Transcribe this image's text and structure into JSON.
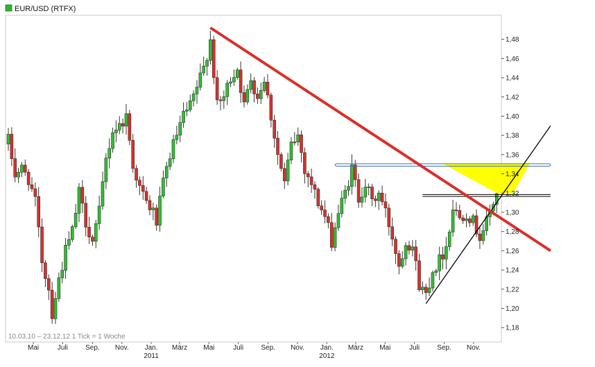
{
  "chart_data": {
    "type": "candlestick",
    "title": "",
    "legend": {
      "label": "EUR/USD (RTFX)",
      "color": "#2db42d",
      "placement": "top-left"
    },
    "footer": "10.03.10 – 23.12.12   1 Tick = 1 Woche",
    "ylim": [
      1.165,
      1.505
    ],
    "y_ticks": [
      "1,18",
      "1,20",
      "1,22",
      "1,24",
      "1,26",
      "1,28",
      "1,30",
      "1,32",
      "1,34",
      "1,36",
      "1,38",
      "1,40",
      "1,42",
      "1,44",
      "1,46",
      "1,48"
    ],
    "y_tick_values": [
      1.18,
      1.2,
      1.22,
      1.24,
      1.26,
      1.28,
      1.3,
      1.32,
      1.34,
      1.36,
      1.38,
      1.4,
      1.42,
      1.44,
      1.46,
      1.48
    ],
    "x_range": [
      "2010-03-10",
      "2012-12-23"
    ],
    "x_ticks": [
      {
        "date": "2010-05-01",
        "label": "Mai",
        "year": ""
      },
      {
        "date": "2010-07-01",
        "label": "Juli",
        "year": ""
      },
      {
        "date": "2010-09-01",
        "label": "Sep.",
        "year": ""
      },
      {
        "date": "2010-11-01",
        "label": "Nov.",
        "year": ""
      },
      {
        "date": "2011-01-01",
        "label": "Jan.",
        "year": "2011"
      },
      {
        "date": "2011-03-01",
        "label": "März",
        "year": ""
      },
      {
        "date": "2011-05-01",
        "label": "Mai",
        "year": ""
      },
      {
        "date": "2011-07-01",
        "label": "Juli",
        "year": ""
      },
      {
        "date": "2011-09-01",
        "label": "Sep.",
        "year": ""
      },
      {
        "date": "2011-11-01",
        "label": "Nov.",
        "year": ""
      },
      {
        "date": "2012-01-01",
        "label": "Jan.",
        "year": "2012"
      },
      {
        "date": "2012-03-01",
        "label": "März",
        "year": ""
      },
      {
        "date": "2012-05-01",
        "label": "Mai",
        "year": ""
      },
      {
        "date": "2012-07-01",
        "label": "Juli",
        "year": ""
      },
      {
        "date": "2012-09-01",
        "label": "Sep.",
        "year": ""
      },
      {
        "date": "2012-11-01",
        "label": "Nov.",
        "year": ""
      }
    ],
    "up_color": "#2ec12e",
    "down_color": "#d9302a",
    "close_path": [
      [
        "2010-03-10",
        1.375
      ],
      [
        "2010-03-24",
        1.34
      ],
      [
        "2010-04-07",
        1.345
      ],
      [
        "2010-04-21",
        1.335
      ],
      [
        "2010-05-05",
        1.31
      ],
      [
        "2010-05-19",
        1.25
      ],
      [
        "2010-06-02",
        1.22
      ],
      [
        "2010-06-09",
        1.195
      ],
      [
        "2010-06-23",
        1.23
      ],
      [
        "2010-07-07",
        1.26
      ],
      [
        "2010-07-21",
        1.28
      ],
      [
        "2010-08-04",
        1.32
      ],
      [
        "2010-08-18",
        1.29
      ],
      [
        "2010-09-01",
        1.27
      ],
      [
        "2010-09-15",
        1.3
      ],
      [
        "2010-09-29",
        1.355
      ],
      [
        "2010-10-13",
        1.385
      ],
      [
        "2010-10-27",
        1.39
      ],
      [
        "2010-11-10",
        1.4
      ],
      [
        "2010-11-24",
        1.35
      ],
      [
        "2010-12-08",
        1.325
      ],
      [
        "2010-12-22",
        1.31
      ],
      [
        "2011-01-05",
        1.3
      ],
      [
        "2011-01-12",
        1.29
      ],
      [
        "2011-01-26",
        1.33
      ],
      [
        "2011-02-09",
        1.36
      ],
      [
        "2011-02-23",
        1.38
      ],
      [
        "2011-03-09",
        1.4
      ],
      [
        "2011-03-23",
        1.41
      ],
      [
        "2011-04-06",
        1.43
      ],
      [
        "2011-04-20",
        1.45
      ],
      [
        "2011-05-04",
        1.48
      ],
      [
        "2011-05-18",
        1.41
      ],
      [
        "2011-06-01",
        1.42
      ],
      [
        "2011-06-15",
        1.44
      ],
      [
        "2011-06-29",
        1.45
      ],
      [
        "2011-07-13",
        1.41
      ],
      [
        "2011-07-27",
        1.44
      ],
      [
        "2011-08-10",
        1.42
      ],
      [
        "2011-08-24",
        1.44
      ],
      [
        "2011-09-07",
        1.4
      ],
      [
        "2011-09-21",
        1.36
      ],
      [
        "2011-10-05",
        1.33
      ],
      [
        "2011-10-19",
        1.37
      ],
      [
        "2011-11-02",
        1.38
      ],
      [
        "2011-11-16",
        1.345
      ],
      [
        "2011-11-30",
        1.33
      ],
      [
        "2011-12-14",
        1.31
      ],
      [
        "2011-12-28",
        1.295
      ],
      [
        "2012-01-11",
        1.27
      ],
      [
        "2012-01-25",
        1.3
      ],
      [
        "2012-02-08",
        1.32
      ],
      [
        "2012-02-22",
        1.345
      ],
      [
        "2012-03-07",
        1.315
      ],
      [
        "2012-03-21",
        1.33
      ],
      [
        "2012-04-04",
        1.31
      ],
      [
        "2012-04-18",
        1.32
      ],
      [
        "2012-05-02",
        1.3
      ],
      [
        "2012-05-16",
        1.275
      ],
      [
        "2012-05-30",
        1.245
      ],
      [
        "2012-06-13",
        1.27
      ],
      [
        "2012-06-27",
        1.265
      ],
      [
        "2012-07-11",
        1.225
      ],
      [
        "2012-07-25",
        1.215
      ],
      [
        "2012-08-08",
        1.24
      ],
      [
        "2012-08-22",
        1.25
      ],
      [
        "2012-09-05",
        1.265
      ],
      [
        "2012-09-19",
        1.305
      ],
      [
        "2012-10-03",
        1.295
      ],
      [
        "2012-10-17",
        1.3
      ],
      [
        "2012-10-31",
        1.29
      ],
      [
        "2012-11-14",
        1.275
      ],
      [
        "2012-11-28",
        1.29
      ],
      [
        "2012-12-12",
        1.31
      ],
      [
        "2012-12-19",
        1.32
      ]
    ],
    "annotations": {
      "resistance_line": {
        "color": "#d9302a",
        "from": [
          "2011-05-04",
          1.492
        ],
        "to": [
          "2013-04-10",
          1.26
        ]
      },
      "support_line": {
        "color": "#000000",
        "from": [
          "2012-07-25",
          1.205
        ],
        "to": [
          "2013-04-10",
          1.39
        ]
      },
      "channel_top": {
        "color": "#000000",
        "from": [
          "2012-07-18",
          1.3185
        ],
        "to": [
          "2013-04-10",
          1.3185
        ]
      },
      "channel_bottom": {
        "color": "#000000",
        "from": [
          "2012-07-18",
          1.3165
        ],
        "to": [
          "2013-04-10",
          1.3165
        ]
      },
      "blue_level": {
        "color": "#3a6fb5",
        "from": [
          "2012-01-18",
          1.3505
        ],
        "to": [
          "2013-04-10",
          1.3505
        ],
        "y_low": 1.348
      },
      "yellow_area": {
        "color": "#ffff00",
        "points": [
          [
            "2012-08-29",
            1.3505
          ],
          [
            "2013-02-26",
            1.3505
          ],
          [
            "2013-01-22",
            1.32
          ],
          [
            "2012-12-19",
            1.32
          ]
        ]
      }
    }
  }
}
